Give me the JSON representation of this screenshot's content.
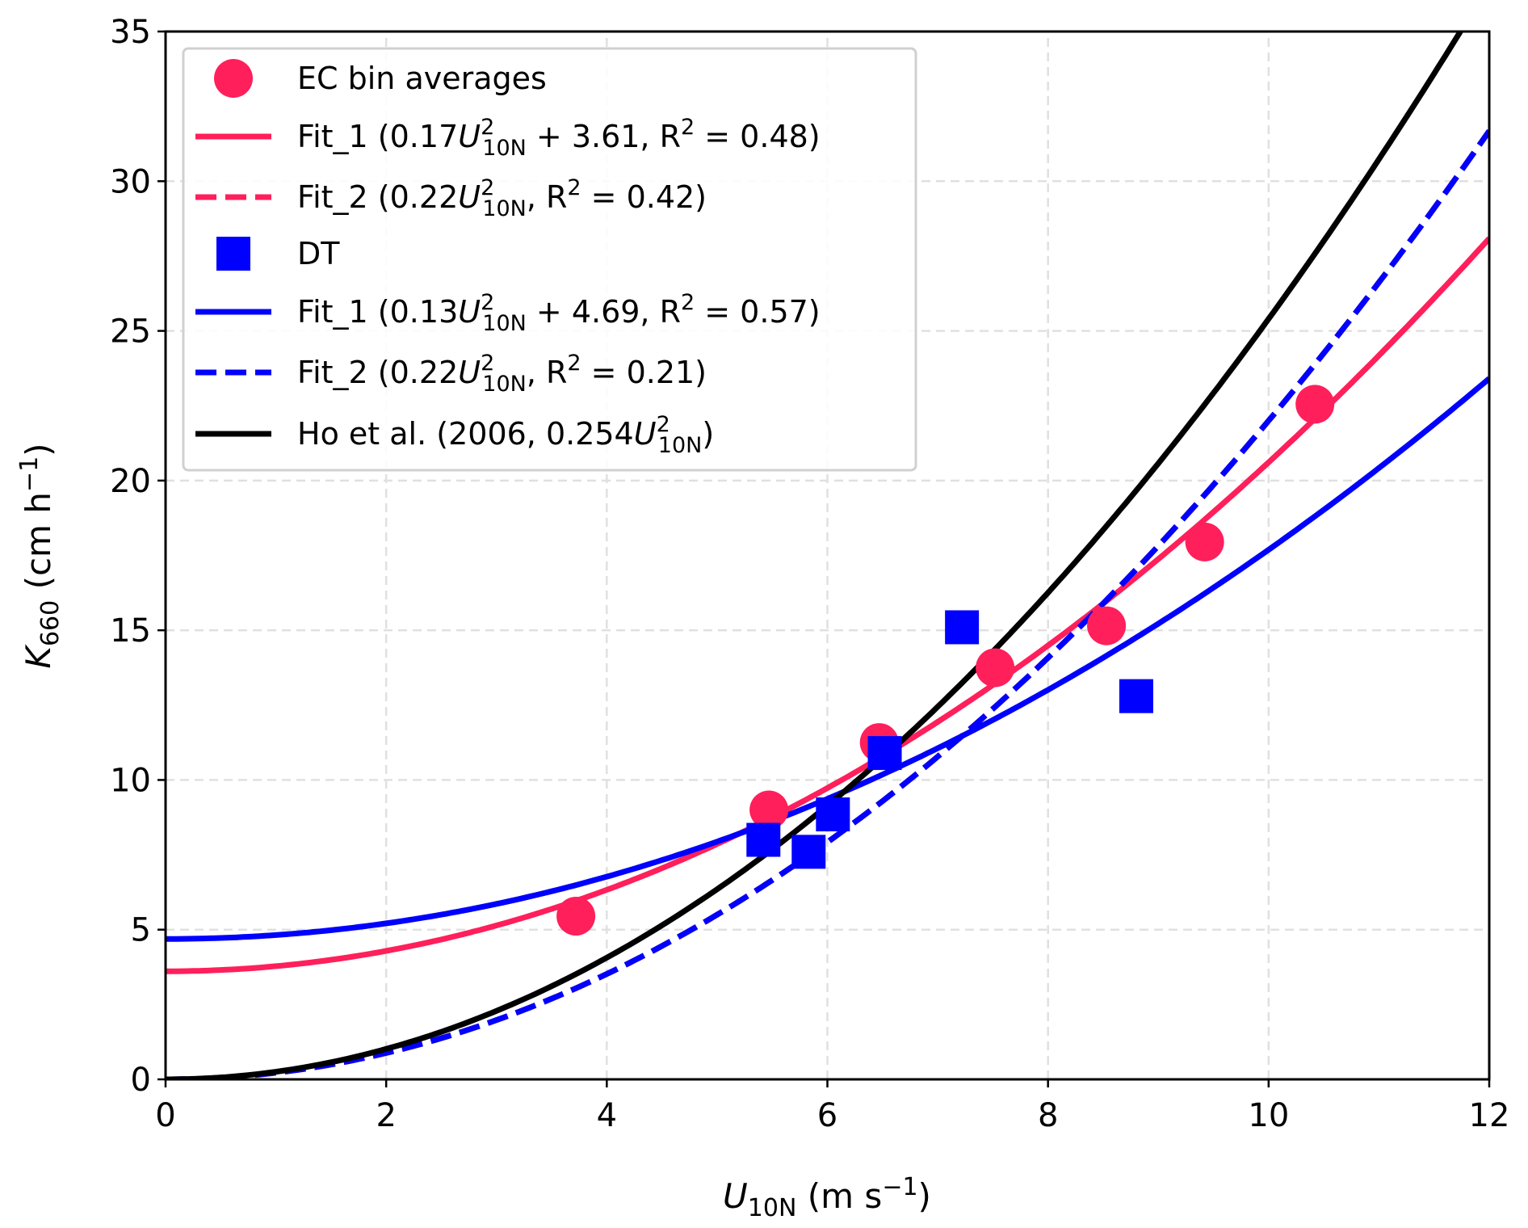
{
  "chart_data": {
    "type": "scatter",
    "title": "",
    "xlabel": {
      "main": "U",
      "sub": "10N",
      "rest": " (m s",
      "sup": "−1",
      "end": ")"
    },
    "ylabel": {
      "main": "K",
      "sub": "660",
      "rest": " (cm h",
      "sup": "−1",
      "end": ")"
    },
    "xlim": [
      0,
      12
    ],
    "ylim": [
      0,
      35
    ],
    "xticks": [
      0,
      2,
      4,
      6,
      8,
      10,
      12
    ],
    "yticks": [
      0,
      5,
      10,
      15,
      20,
      25,
      30,
      35
    ],
    "grid": true,
    "legend_placement": "top-left",
    "colors": {
      "ec": "#ff1f5b",
      "dt": "#0000ff",
      "ho": "#000000",
      "grid": "#e0e0e0"
    },
    "series": [
      {
        "name": "EC bin averages",
        "kind": "points",
        "marker": "circle",
        "color": "#ff1f5b",
        "x": [
          3.72,
          5.47,
          6.47,
          7.52,
          8.53,
          9.42,
          10.42
        ],
        "y": [
          5.45,
          9.0,
          11.25,
          13.75,
          15.15,
          17.95,
          22.55
        ],
        "label": [
          {
            "t": "EC bin averages"
          }
        ]
      },
      {
        "name": "EC Fit_1",
        "kind": "curve",
        "a": 0.17,
        "b": 3.61,
        "dash": false,
        "color": "#ff1f5b",
        "label": [
          {
            "t": "Fit_1 (0.17"
          },
          {
            "t": "U",
            "i": 1
          },
          {
            "t": "2",
            "sup": 1
          },
          {
            "t": "10N",
            "sub": 1
          },
          {
            "t": " + 3.61, R"
          },
          {
            "t": "2",
            "sup": 1
          },
          {
            "t": " = 0.48)"
          }
        ]
      },
      {
        "name": "EC Fit_2",
        "kind": "curve",
        "a": 0.22,
        "b": 0,
        "dash": true,
        "color": "#ff1f5b",
        "label": [
          {
            "t": "Fit_2 (0.22"
          },
          {
            "t": "U",
            "i": 1
          },
          {
            "t": "2",
            "sup": 1
          },
          {
            "t": "10N",
            "sub": 1
          },
          {
            "t": ", R"
          },
          {
            "t": "2",
            "sup": 1
          },
          {
            "t": " = 0.42)"
          }
        ]
      },
      {
        "name": "DT",
        "kind": "points",
        "marker": "square",
        "color": "#0000ff",
        "x": [
          5.42,
          5.83,
          6.05,
          6.52,
          7.22,
          8.8
        ],
        "y": [
          8.0,
          7.6,
          8.85,
          10.9,
          15.1,
          12.8
        ],
        "label": [
          {
            "t": "DT"
          }
        ]
      },
      {
        "name": "DT Fit_1",
        "kind": "curve",
        "a": 0.13,
        "b": 4.69,
        "dash": false,
        "color": "#0000ff",
        "label": [
          {
            "t": "Fit_1 (0.13"
          },
          {
            "t": "U",
            "i": 1
          },
          {
            "t": "2",
            "sup": 1
          },
          {
            "t": "10N",
            "sub": 1
          },
          {
            "t": " + 4.69, R"
          },
          {
            "t": "2",
            "sup": 1
          },
          {
            "t": " = 0.57)"
          }
        ]
      },
      {
        "name": "DT Fit_2",
        "kind": "curve",
        "a": 0.22,
        "b": 0,
        "dash": true,
        "color": "#0000ff",
        "label": [
          {
            "t": "Fit_2 (0.22"
          },
          {
            "t": "U",
            "i": 1
          },
          {
            "t": "2",
            "sup": 1
          },
          {
            "t": "10N",
            "sub": 1
          },
          {
            "t": ", R"
          },
          {
            "t": "2",
            "sup": 1
          },
          {
            "t": " = 0.21)"
          }
        ]
      },
      {
        "name": "Ho et al.",
        "kind": "curve",
        "a": 0.254,
        "b": 0,
        "dash": false,
        "color": "#000000",
        "label": [
          {
            "t": "Ho et al. (2006, 0.254"
          },
          {
            "t": "U",
            "i": 1
          },
          {
            "t": "2",
            "sup": 1
          },
          {
            "t": "10N",
            "sub": 1
          },
          {
            "t": ")"
          }
        ]
      }
    ]
  }
}
